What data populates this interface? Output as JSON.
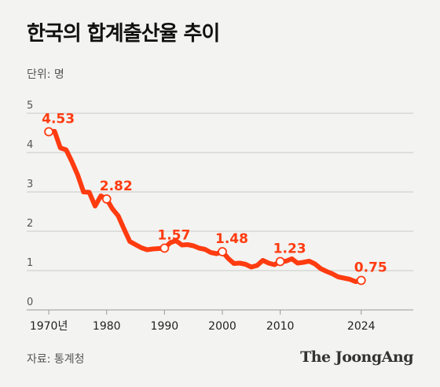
{
  "title": "한국의 합계출산율 추이",
  "unit_label": "단위: 명",
  "source": "자료: 통계청",
  "brand": "The JoongAng",
  "colors": {
    "line": "#ff3b10",
    "grid": "#c8c8c8",
    "text": "#222222"
  },
  "chart_data": {
    "type": "line",
    "ylim": [
      0,
      5
    ],
    "yticks": [
      0,
      1,
      2,
      3,
      4,
      5
    ],
    "xlim": [
      1967,
      2033
    ],
    "xticks": [
      {
        "value": 1970,
        "label": "1970년"
      },
      {
        "value": 1980,
        "label": "1980"
      },
      {
        "value": 1990,
        "label": "1990"
      },
      {
        "value": 2000,
        "label": "2000"
      },
      {
        "value": 2010,
        "label": "2010"
      },
      {
        "value": 2024,
        "label": "2024"
      }
    ],
    "grid": true,
    "x": [
      1970,
      1971,
      1972,
      1973,
      1974,
      1975,
      1976,
      1977,
      1978,
      1979,
      1980,
      1981,
      1982,
      1983,
      1984,
      1985,
      1986,
      1987,
      1988,
      1989,
      1990,
      1991,
      1992,
      1993,
      1994,
      1995,
      1996,
      1997,
      1998,
      1999,
      2000,
      2001,
      2002,
      2003,
      2004,
      2005,
      2006,
      2007,
      2008,
      2009,
      2010,
      2011,
      2012,
      2013,
      2014,
      2015,
      2016,
      2017,
      2018,
      2019,
      2020,
      2021,
      2022,
      2023,
      2024
    ],
    "values": [
      4.53,
      4.54,
      4.12,
      4.07,
      3.77,
      3.43,
      3.0,
      2.99,
      2.64,
      2.9,
      2.82,
      2.57,
      2.39,
      2.06,
      1.74,
      1.66,
      1.58,
      1.53,
      1.55,
      1.56,
      1.57,
      1.71,
      1.76,
      1.65,
      1.66,
      1.63,
      1.57,
      1.54,
      1.46,
      1.43,
      1.48,
      1.31,
      1.18,
      1.19,
      1.16,
      1.09,
      1.13,
      1.26,
      1.19,
      1.15,
      1.23,
      1.24,
      1.3,
      1.19,
      1.21,
      1.24,
      1.17,
      1.05,
      0.98,
      0.92,
      0.84,
      0.81,
      0.78,
      0.72,
      0.75
    ],
    "annotations": [
      {
        "x": 1970,
        "y": 4.53,
        "label": "4.53"
      },
      {
        "x": 1980,
        "y": 2.82,
        "label": "2.82"
      },
      {
        "x": 1990,
        "y": 1.57,
        "label": "1.57"
      },
      {
        "x": 2000,
        "y": 1.48,
        "label": "1.48"
      },
      {
        "x": 2010,
        "y": 1.23,
        "label": "1.23"
      },
      {
        "x": 2024,
        "y": 0.75,
        "label": "0.75"
      }
    ]
  }
}
